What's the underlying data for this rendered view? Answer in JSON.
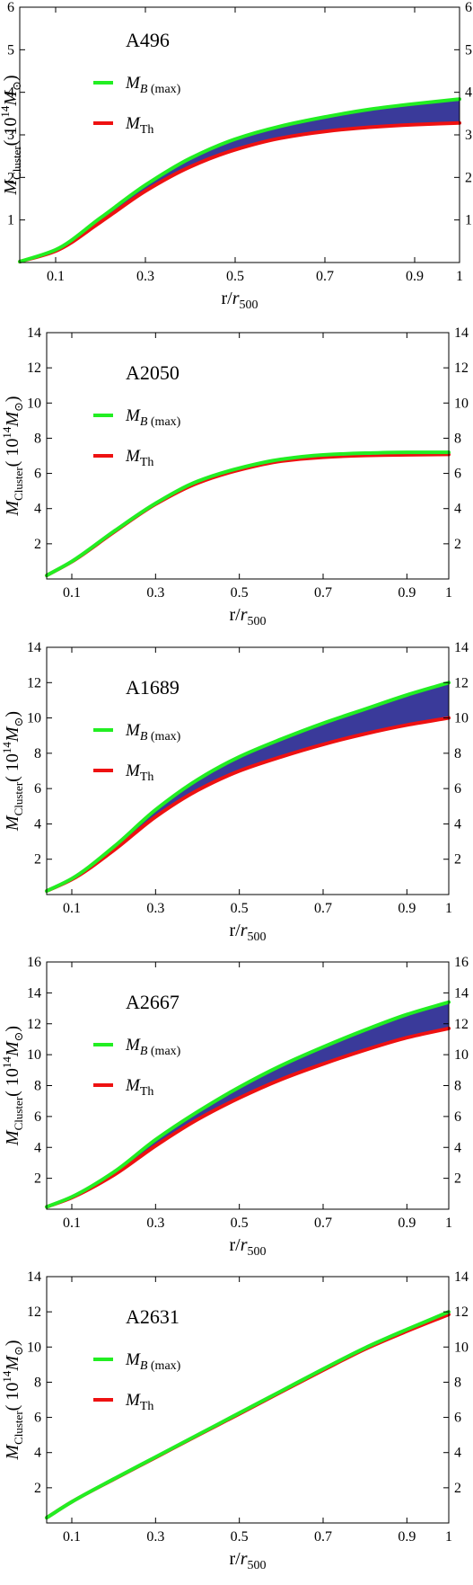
{
  "chart_data": [
    {
      "type": "area",
      "title": "A496",
      "xlabel": "r/r500",
      "ylabel": "M_Cluster (10^14 M_sun)",
      "xlim": [
        0.02,
        1.0
      ],
      "ylim": [
        0,
        6
      ],
      "xticks": [
        "0.1",
        "0.3",
        "0.5",
        "0.7",
        "0.9",
        "1"
      ],
      "yticks": [
        "1",
        "2",
        "3",
        "4",
        "5",
        "6"
      ],
      "grid": false,
      "legend_position": "top-left",
      "fill_between_series": true,
      "series": [
        {
          "name": "M_B(max)",
          "color": "#22ee22",
          "x": [
            0.02,
            0.1,
            0.2,
            0.3,
            0.4,
            0.5,
            0.6,
            0.7,
            0.8,
            0.9,
            1.0
          ],
          "y": [
            0.02,
            0.3,
            1.05,
            1.82,
            2.45,
            2.9,
            3.2,
            3.42,
            3.6,
            3.73,
            3.84
          ]
        },
        {
          "name": "M_Th",
          "color": "#ee1111",
          "x": [
            0.02,
            0.1,
            0.2,
            0.3,
            0.4,
            0.5,
            0.6,
            0.7,
            0.8,
            0.9,
            1.0
          ],
          "y": [
            0.02,
            0.27,
            0.95,
            1.68,
            2.25,
            2.65,
            2.92,
            3.08,
            3.18,
            3.24,
            3.28
          ]
        }
      ]
    },
    {
      "type": "area",
      "title": "A2050",
      "xlabel": "r/r500",
      "ylabel": "M_Cluster (10^14 M_sun)",
      "xlim": [
        0.04,
        1.0
      ],
      "ylim": [
        0,
        14
      ],
      "xticks": [
        "0.1",
        "0.3",
        "0.5",
        "0.7",
        "0.9",
        "1"
      ],
      "yticks": [
        "2",
        "4",
        "6",
        "8",
        "10",
        "12",
        "14"
      ],
      "grid": false,
      "legend_position": "top-left",
      "fill_between_series": true,
      "series": [
        {
          "name": "M_B(max)",
          "color": "#22ee22",
          "x": [
            0.04,
            0.1,
            0.2,
            0.3,
            0.4,
            0.5,
            0.6,
            0.7,
            0.8,
            0.9,
            1.0
          ],
          "y": [
            0.2,
            1.0,
            2.7,
            4.3,
            5.55,
            6.3,
            6.8,
            7.05,
            7.15,
            7.2,
            7.2
          ]
        },
        {
          "name": "M_Th",
          "color": "#ee1111",
          "x": [
            0.04,
            0.1,
            0.2,
            0.3,
            0.4,
            0.5,
            0.6,
            0.7,
            0.8,
            0.9,
            1.0
          ],
          "y": [
            0.2,
            0.98,
            2.65,
            4.25,
            5.45,
            6.2,
            6.7,
            6.92,
            7.02,
            7.06,
            7.08
          ]
        }
      ]
    },
    {
      "type": "area",
      "title": "A1689",
      "xlabel": "r/r500",
      "ylabel": "M_Cluster (10^14 M_sun)",
      "xlim": [
        0.04,
        1.0
      ],
      "ylim": [
        0,
        14
      ],
      "xticks": [
        "0.1",
        "0.3",
        "0.5",
        "0.7",
        "0.9",
        "1"
      ],
      "yticks": [
        "2",
        "4",
        "6",
        "8",
        "10",
        "12",
        "14"
      ],
      "grid": false,
      "legend_position": "top-left",
      "fill_between_series": true,
      "series": [
        {
          "name": "M_B(max)",
          "color": "#22ee22",
          "x": [
            0.04,
            0.1,
            0.2,
            0.3,
            0.4,
            0.5,
            0.6,
            0.7,
            0.8,
            0.9,
            1.0
          ],
          "y": [
            0.2,
            0.9,
            2.7,
            4.8,
            6.5,
            7.8,
            8.8,
            9.7,
            10.5,
            11.3,
            12.0
          ]
        },
        {
          "name": "M_Th",
          "color": "#ee1111",
          "x": [
            0.04,
            0.1,
            0.2,
            0.3,
            0.4,
            0.5,
            0.6,
            0.7,
            0.8,
            0.9,
            1.0
          ],
          "y": [
            0.2,
            0.85,
            2.5,
            4.4,
            5.9,
            7.0,
            7.8,
            8.5,
            9.1,
            9.6,
            10.0
          ]
        }
      ]
    },
    {
      "type": "area",
      "title": "A2667",
      "xlabel": "r/r500",
      "ylabel": "M_Cluster (10^14 M_sun)",
      "xlim": [
        0.04,
        1.0
      ],
      "ylim": [
        0,
        16
      ],
      "xticks": [
        "0.1",
        "0.3",
        "0.5",
        "0.7",
        "0.9",
        "1"
      ],
      "yticks": [
        "2",
        "4",
        "6",
        "8",
        "10",
        "12",
        "14",
        "16"
      ],
      "grid": false,
      "legend_position": "top-left",
      "fill_between_series": true,
      "series": [
        {
          "name": "M_B(max)",
          "color": "#22ee22",
          "x": [
            0.04,
            0.1,
            0.2,
            0.3,
            0.4,
            0.5,
            0.6,
            0.7,
            0.8,
            0.9,
            1.0
          ],
          "y": [
            0.15,
            0.8,
            2.4,
            4.5,
            6.3,
            7.9,
            9.3,
            10.5,
            11.6,
            12.6,
            13.4
          ]
        },
        {
          "name": "M_Th",
          "color": "#ee1111",
          "x": [
            0.04,
            0.1,
            0.2,
            0.3,
            0.4,
            0.5,
            0.6,
            0.7,
            0.8,
            0.9,
            1.0
          ],
          "y": [
            0.15,
            0.75,
            2.2,
            4.1,
            5.8,
            7.2,
            8.4,
            9.4,
            10.3,
            11.1,
            11.7
          ]
        }
      ]
    },
    {
      "type": "area",
      "title": "A2631",
      "xlabel": "r/r500",
      "ylabel": "M_Cluster (10^14 M_sun)",
      "xlim": [
        0.04,
        1.0
      ],
      "ylim": [
        0,
        14
      ],
      "xticks": [
        "0.1",
        "0.3",
        "0.5",
        "0.7",
        "0.9",
        "1"
      ],
      "yticks": [
        "2",
        "4",
        "6",
        "8",
        "10",
        "12",
        "14"
      ],
      "grid": false,
      "legend_position": "top-left",
      "fill_between_series": true,
      "series": [
        {
          "name": "M_B(max)",
          "color": "#22ee22",
          "x": [
            0.04,
            0.1,
            0.2,
            0.3,
            0.4,
            0.5,
            0.6,
            0.7,
            0.8,
            0.9,
            1.0
          ],
          "y": [
            0.3,
            1.2,
            2.5,
            3.75,
            5.0,
            6.25,
            7.5,
            8.75,
            9.95,
            11.0,
            12.0
          ]
        },
        {
          "name": "M_Th",
          "color": "#ee1111",
          "x": [
            0.04,
            0.1,
            0.2,
            0.3,
            0.4,
            0.5,
            0.6,
            0.7,
            0.8,
            0.9,
            1.0
          ],
          "y": [
            0.3,
            1.2,
            2.48,
            3.72,
            4.97,
            6.2,
            7.45,
            8.68,
            9.88,
            10.9,
            11.85
          ]
        }
      ]
    }
  ],
  "colors": {
    "band_fill": "#3a3a9a",
    "axes": "#000000"
  }
}
